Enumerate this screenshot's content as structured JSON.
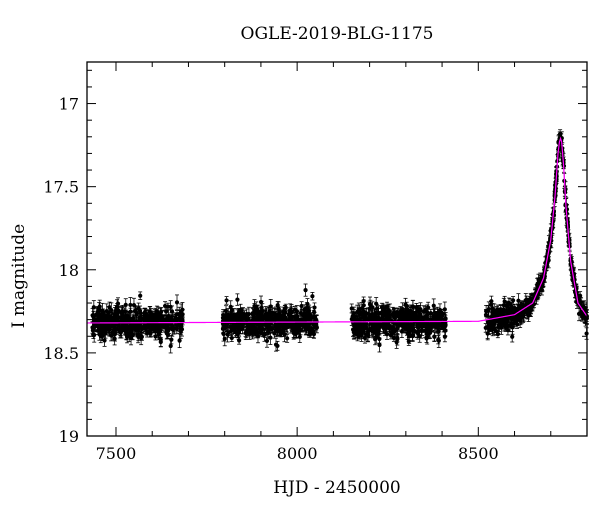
{
  "chart_data": {
    "type": "scatter",
    "title": "OGLE-2019-BLG-1175",
    "xlabel": "HJD - 2450000",
    "ylabel": "I magnitude",
    "xlim": [
      7420,
      8800
    ],
    "ylim": [
      19.0,
      16.75
    ],
    "y_inverted": true,
    "x_ticks": [
      7500,
      8000,
      8500
    ],
    "y_ticks": [
      17,
      17.5,
      18,
      18.5,
      19
    ],
    "y_tick_labels": [
      "17",
      "17.5",
      "18",
      "18.5",
      "19"
    ],
    "grid": false,
    "baseline_magnitude": 18.32,
    "peak": {
      "hjd": 8727,
      "magnitude": 17.2
    },
    "observing_seasons": [
      [
        7435,
        7685
      ],
      [
        7795,
        8055
      ],
      [
        8150,
        8410
      ],
      [
        8520,
        8800
      ]
    ],
    "series": [
      {
        "kind": "data",
        "marker": "filled-circle",
        "error_bars": true,
        "color": "#000000"
      },
      {
        "kind": "model",
        "color": "#ff00ff",
        "x": [
          7420,
          8500,
          8600,
          8650,
          8680,
          8700,
          8712,
          8720,
          8724,
          8727,
          8730,
          8735,
          8742,
          8755,
          8775,
          8800
        ],
        "y": [
          18.32,
          18.31,
          18.27,
          18.2,
          18.05,
          17.82,
          17.55,
          17.3,
          17.23,
          17.21,
          17.23,
          17.36,
          17.62,
          17.95,
          18.2,
          18.28
        ]
      }
    ]
  }
}
